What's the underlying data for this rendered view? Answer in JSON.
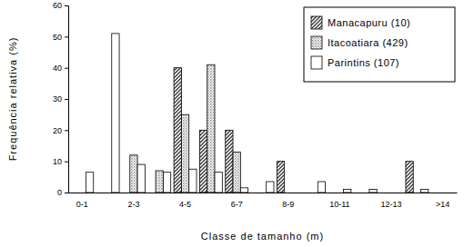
{
  "chart_data": {
    "type": "bar",
    "x_label": "Classe de tamanho (m)",
    "y_label": "Frequência relativa (%)",
    "categories": [
      "0-1",
      null,
      "2-3",
      null,
      "4-5",
      null,
      "6-7",
      null,
      "8-9",
      null,
      "10-11",
      null,
      "12-13",
      null,
      ">14"
    ],
    "series": [
      {
        "name": "Manacapuru (10)",
        "color": "#333333",
        "values": [
          0,
          0,
          0,
          0,
          40,
          20,
          20,
          0,
          10,
          0,
          0,
          0,
          0,
          10,
          0
        ]
      },
      {
        "name": "Itacoatiara (429)",
        "color": "#9a9a9a",
        "values": [
          0,
          0,
          12,
          7,
          25,
          41,
          13,
          0,
          0,
          0,
          0,
          0,
          0,
          0,
          0
        ]
      },
      {
        "name": "Parintins (107)",
        "color": "#ffffff",
        "values": [
          6.5,
          51,
          9,
          6.5,
          7.5,
          6.5,
          1.5,
          3.5,
          0,
          3.5,
          1,
          1,
          0,
          1,
          0
        ]
      }
    ],
    "ylim": [
      0,
      60
    ],
    "yticks": [
      0,
      10,
      20,
      30,
      40,
      50,
      60
    ],
    "grid": false,
    "legend": "upper right"
  }
}
